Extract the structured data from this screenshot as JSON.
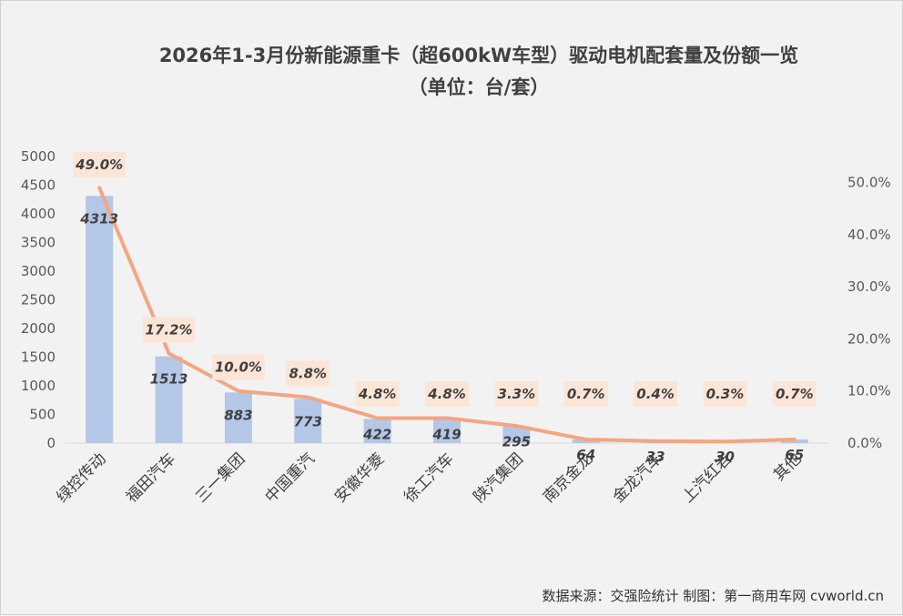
{
  "title_line1": "2026年1-3月份新能源重卡（超600kW车型）驱动电机配套量及份额一览",
  "title_line2": "（单位：台/套）",
  "source": "数据来源：交强险统计  制图：第一商用车网 cvworld.cn",
  "colors": {
    "bar": "#b4c7e7",
    "line": "#f4a582",
    "label_bg": "#fbe5d6",
    "grid": "#d9d9d9"
  },
  "chart_data": {
    "type": "bar",
    "categories": [
      "绿控传动",
      "福田汽车",
      "三一集团",
      "中国重汽",
      "安徽华菱",
      "徐工汽车",
      "陕汽集团",
      "南京金龙",
      "金龙汽车",
      "上汽红岩",
      "其他"
    ],
    "series": [
      {
        "type": "bar",
        "axis": "left",
        "values": [
          4313,
          1513,
          883,
          773,
          422,
          419,
          295,
          64,
          33,
          30,
          65
        ]
      },
      {
        "type": "line",
        "axis": "right",
        "values": [
          49.0,
          17.2,
          10.0,
          8.8,
          4.8,
          4.8,
          3.3,
          0.7,
          0.4,
          0.3,
          0.7
        ],
        "labels": [
          "49.0%",
          "17.2%",
          "10.0%",
          "8.8%",
          "4.8%",
          "4.8%",
          "3.3%",
          "0.7%",
          "0.4%",
          "0.3%",
          "0.7%"
        ]
      }
    ],
    "y_left": {
      "ylim": [
        0,
        5000
      ],
      "ticks": [
        "0",
        "500",
        "1000",
        "1500",
        "2000",
        "2500",
        "3000",
        "3500",
        "4000",
        "4500",
        "5000"
      ]
    },
    "y_right": {
      "ylim": [
        0,
        55
      ],
      "ticks": [
        "0.0%",
        "10.0%",
        "20.0%",
        "30.0%",
        "40.0%",
        "50.0%"
      ]
    },
    "grid": false,
    "legend": "none"
  }
}
